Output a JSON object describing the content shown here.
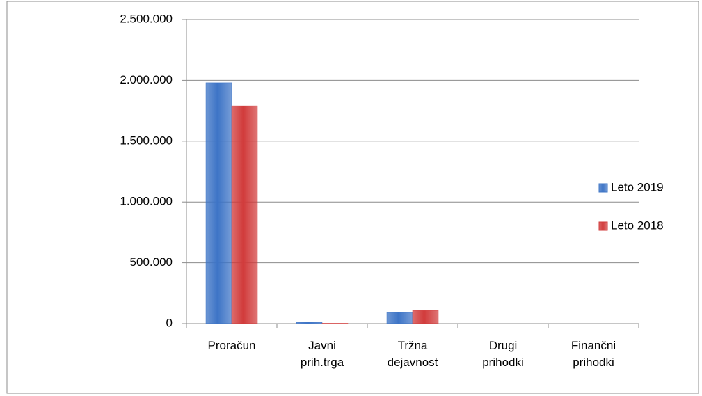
{
  "chart_data": {
    "type": "bar",
    "categories": [
      "Proračun",
      "Javni prih.trga",
      "Tržna dejavnost",
      "Drugi prihodki",
      "Finančni prihodki"
    ],
    "series": [
      {
        "name": "Leto 2019",
        "color": "#3d74c6",
        "values": [
          1980000,
          10000,
          92000,
          0,
          0
        ]
      },
      {
        "name": "Leto 2018",
        "color": "#d13b3b",
        "values": [
          1790000,
          3000,
          108000,
          0,
          0
        ]
      }
    ],
    "ylim": [
      0,
      2500000
    ],
    "yticks": [
      0,
      {
        "value": 500000,
        "label": "500.000"
      },
      {
        "value": 1000000,
        "label": "1.000.000"
      },
      {
        "value": 1500000,
        "label": "1.500.000"
      },
      {
        "value": 2000000,
        "label": "2.000.000"
      },
      {
        "value": 2500000,
        "label": "2.500.000"
      }
    ],
    "grid": true,
    "legend": "right"
  }
}
